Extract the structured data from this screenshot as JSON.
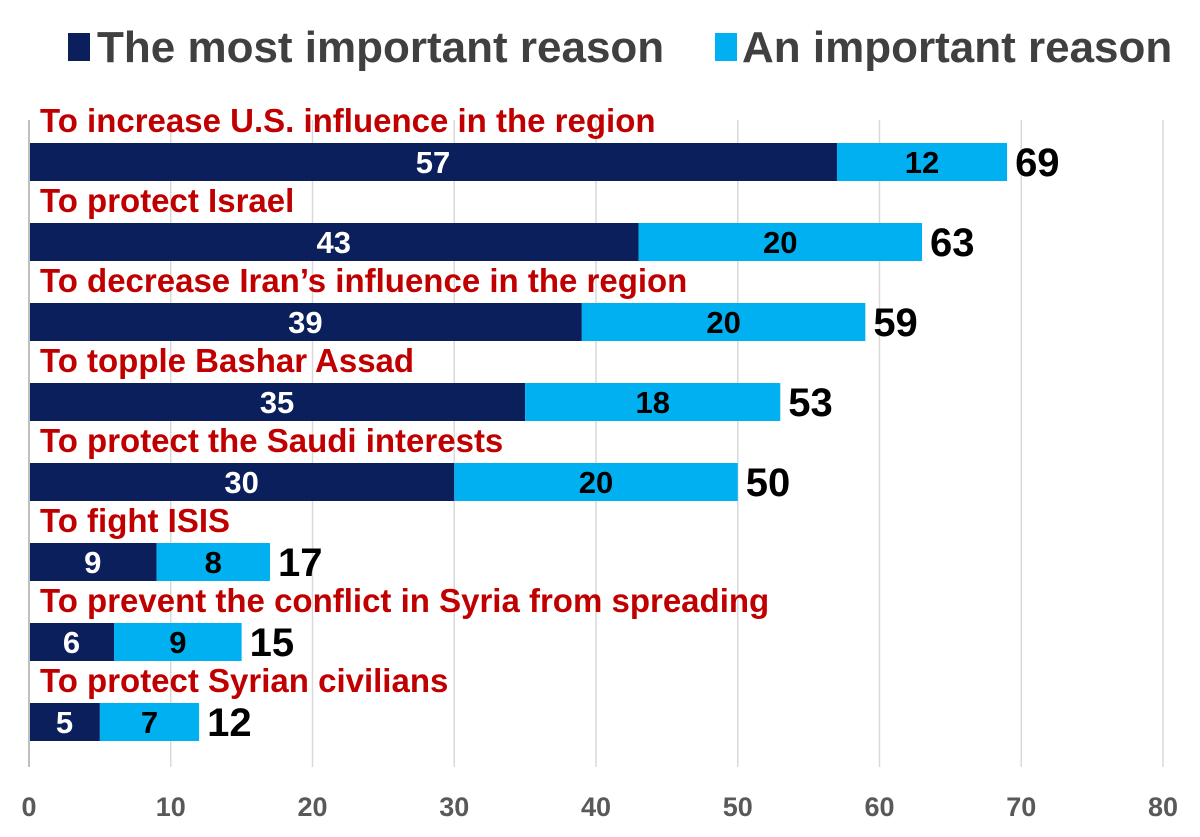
{
  "chart_data": {
    "type": "bar",
    "orientation": "horizontal",
    "stacked": true,
    "categories": [
      "To increase U.S. influence in the region",
      "To protect Israel",
      "To decrease Iran’s influence in the region",
      "To topple Bashar Assad",
      "To protect the Saudi interests",
      "To fight ISIS",
      "To prevent the conflict in Syria from spreading",
      "To protect Syrian civilians"
    ],
    "series": [
      {
        "name": "The most important reason",
        "color": "#0b1f5c",
        "values": [
          57,
          43,
          39,
          35,
          30,
          9,
          6,
          5
        ]
      },
      {
        "name": "An important reason",
        "color": "#00b0f0",
        "values": [
          12,
          20,
          20,
          18,
          20,
          8,
          9,
          7
        ]
      }
    ],
    "totals": [
      69,
      63,
      59,
      53,
      50,
      17,
      15,
      12
    ],
    "xlim": [
      0,
      80
    ],
    "xticks": [
      0,
      10,
      20,
      30,
      40,
      50,
      60,
      70,
      80
    ],
    "grid": true,
    "legend_position": "top",
    "category_label_color": "#c00000"
  }
}
